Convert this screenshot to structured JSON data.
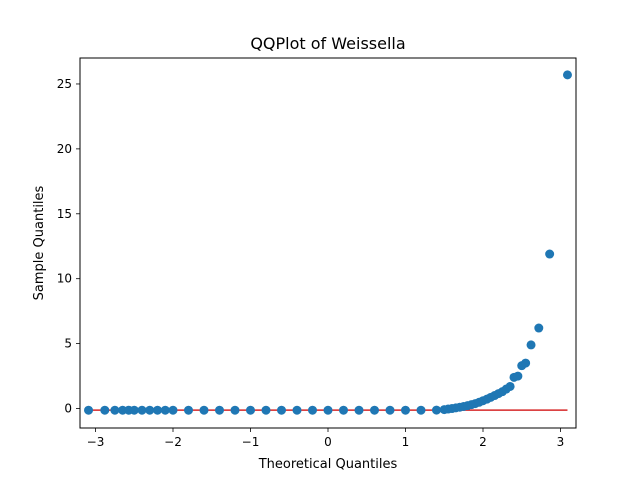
{
  "chart_data": {
    "type": "scatter",
    "title": "QQPlot of Weissella",
    "xlabel": "Theoretical Quantiles",
    "ylabel": "Sample Quantiles",
    "xlim": [
      -3.2,
      3.2
    ],
    "ylim": [
      -1.5,
      27
    ],
    "x_ticks": [
      -3,
      -2,
      -1,
      0,
      1,
      2,
      3
    ],
    "y_ticks": [
      0,
      5,
      10,
      15,
      20,
      25
    ],
    "grid": false,
    "colors": {
      "points": "#1f77b4",
      "reference_line": "#d62728"
    },
    "reference_line": {
      "x": [
        -3.09,
        3.09
      ],
      "y": [
        -0.12,
        -0.12
      ]
    },
    "series": [
      {
        "points": [
          [
            -3.09,
            -0.13
          ],
          [
            -2.88,
            -0.13
          ],
          [
            -2.75,
            -0.13
          ],
          [
            -2.65,
            -0.13
          ],
          [
            -2.57,
            -0.13
          ],
          [
            -2.5,
            -0.13
          ],
          [
            -2.4,
            -0.13
          ],
          [
            -2.3,
            -0.13
          ],
          [
            -2.2,
            -0.13
          ],
          [
            -2.1,
            -0.13
          ],
          [
            -2.0,
            -0.13
          ],
          [
            -1.8,
            -0.13
          ],
          [
            -1.6,
            -0.13
          ],
          [
            -1.4,
            -0.13
          ],
          [
            -1.2,
            -0.13
          ],
          [
            -1.0,
            -0.13
          ],
          [
            -0.8,
            -0.13
          ],
          [
            -0.6,
            -0.13
          ],
          [
            -0.4,
            -0.13
          ],
          [
            -0.2,
            -0.13
          ],
          [
            0.0,
            -0.13
          ],
          [
            0.2,
            -0.13
          ],
          [
            0.4,
            -0.13
          ],
          [
            0.6,
            -0.13
          ],
          [
            0.8,
            -0.13
          ],
          [
            1.0,
            -0.13
          ],
          [
            1.2,
            -0.13
          ],
          [
            1.4,
            -0.12
          ],
          [
            1.5,
            -0.08
          ],
          [
            1.55,
            -0.04
          ],
          [
            1.6,
            0.0
          ],
          [
            1.65,
            0.05
          ],
          [
            1.7,
            0.1
          ],
          [
            1.75,
            0.16
          ],
          [
            1.8,
            0.22
          ],
          [
            1.85,
            0.3
          ],
          [
            1.9,
            0.38
          ],
          [
            1.95,
            0.48
          ],
          [
            2.0,
            0.6
          ],
          [
            2.05,
            0.72
          ],
          [
            2.1,
            0.86
          ],
          [
            2.15,
            1.0
          ],
          [
            2.2,
            1.15
          ],
          [
            2.25,
            1.3
          ],
          [
            2.3,
            1.5
          ],
          [
            2.35,
            1.7
          ],
          [
            2.4,
            2.4
          ],
          [
            2.45,
            2.5
          ],
          [
            2.5,
            3.3
          ],
          [
            2.55,
            3.5
          ],
          [
            2.62,
            4.9
          ],
          [
            2.72,
            6.2
          ],
          [
            2.86,
            11.9
          ],
          [
            3.09,
            25.7
          ]
        ]
      }
    ]
  }
}
